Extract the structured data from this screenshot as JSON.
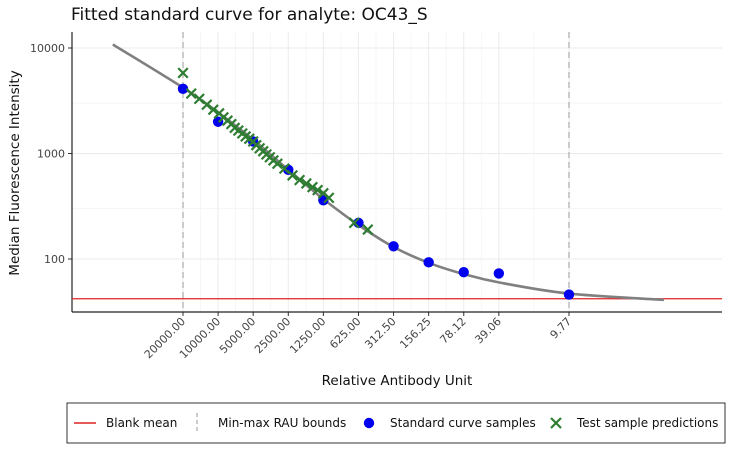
{
  "chart_data": {
    "type": "scatter",
    "title": "Fitted standard curve for analyte: OC43_S",
    "xlabel": "Relative Antibody Unit",
    "ylabel": "Median Fluorescence Intensity",
    "x_scale": "log-reversed",
    "y_scale": "log",
    "ylim": [
      30,
      14000
    ],
    "y_ticks": [
      100,
      1000,
      10000
    ],
    "y_tick_labels": [
      "100",
      "1000",
      "10000"
    ],
    "x_tick_values": [
      20000,
      10000,
      5000,
      2500,
      1250,
      625,
      312.5,
      156.25,
      78.12,
      39.06,
      9.77
    ],
    "x_tick_labels": [
      "20000.00",
      "10000.00",
      "5000.00",
      "2500.00",
      "1250.00",
      "625.00",
      "312.50",
      "156.25",
      "78.12",
      "39.06",
      "9.77"
    ],
    "grid": true,
    "legend_position": "bottom",
    "blank_mean": 42,
    "rau_bounds": [
      20000,
      9.77
    ],
    "series": [
      {
        "name": "Standard curve samples",
        "color": "#0000ee",
        "marker": "circle",
        "x": [
          20000,
          10000,
          5000,
          2500,
          1250,
          625,
          312.5,
          156.25,
          78.12,
          39.06,
          9.77
        ],
        "y": [
          4100,
          2000,
          1300,
          700,
          360,
          220,
          132,
          93,
          75,
          73,
          46
        ]
      },
      {
        "name": "Test sample predictions",
        "color": "#2e7d32",
        "marker": "x",
        "x": [
          20000,
          17000,
          14500,
          12500,
          11000,
          9800,
          9000,
          8300,
          7700,
          7200,
          6700,
          6200,
          5800,
          5400,
          5000,
          4700,
          4400,
          4100,
          3850,
          3600,
          3350,
          3100,
          2700,
          2300,
          2000,
          1750,
          1550,
          1400,
          1250,
          1120,
          680,
          520
        ],
        "y": [
          5800,
          3700,
          3300,
          2900,
          2600,
          2400,
          2200,
          2050,
          1900,
          1750,
          1650,
          1550,
          1450,
          1380,
          1300,
          1200,
          1120,
          1050,
          980,
          920,
          860,
          800,
          720,
          620,
          560,
          520,
          480,
          450,
          420,
          380,
          220,
          190
        ]
      },
      {
        "name": "Fitted curve",
        "color": "#808080",
        "marker": "line",
        "x": [
          80000,
          20000,
          10000,
          5000,
          2500,
          1250,
          625,
          312.5,
          156.25,
          78.12,
          39.06,
          9.77,
          1.5
        ],
        "y": [
          10800,
          4200,
          2450,
          1350,
          700,
          370,
          210,
          130,
          92,
          72,
          60,
          47,
          41
        ]
      }
    ],
    "legend": [
      {
        "label": "Blank mean",
        "kind": "line",
        "color": "#dd2222"
      },
      {
        "label": "Min-max RAU bounds",
        "kind": "dashed",
        "color": "#bbbbbb"
      },
      {
        "label": "Standard curve samples",
        "kind": "circle",
        "color": "#0000ee"
      },
      {
        "label": "Test sample predictions",
        "kind": "x",
        "color": "#2e7d32"
      }
    ]
  }
}
